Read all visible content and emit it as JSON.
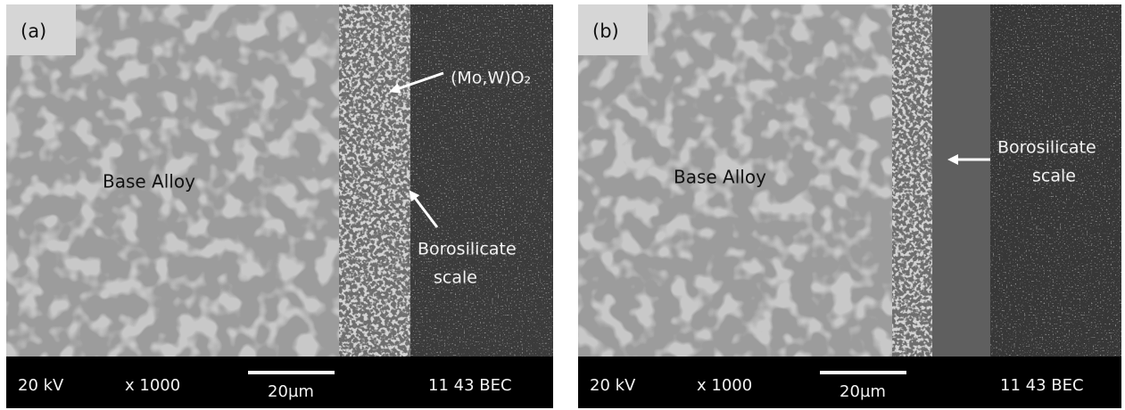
{
  "panels": [
    {
      "label": "(a)",
      "annotations": [
        "Base Alloy",
        "(Mo,W)O₂",
        "Borosilicate",
        "scale"
      ],
      "footer": {
        "voltage": "20 kV",
        "magnification": "x 1000",
        "scale_bar": "20µm",
        "info": "11  43  BEC"
      }
    },
    {
      "label": "(b)",
      "annotations": [
        "Base Alloy",
        "Borosilicate",
        "scale"
      ],
      "footer": {
        "voltage": "20 kV",
        "magnification": "x 1000",
        "scale_bar": "20µm",
        "info": "11  43  BEC"
      }
    }
  ]
}
